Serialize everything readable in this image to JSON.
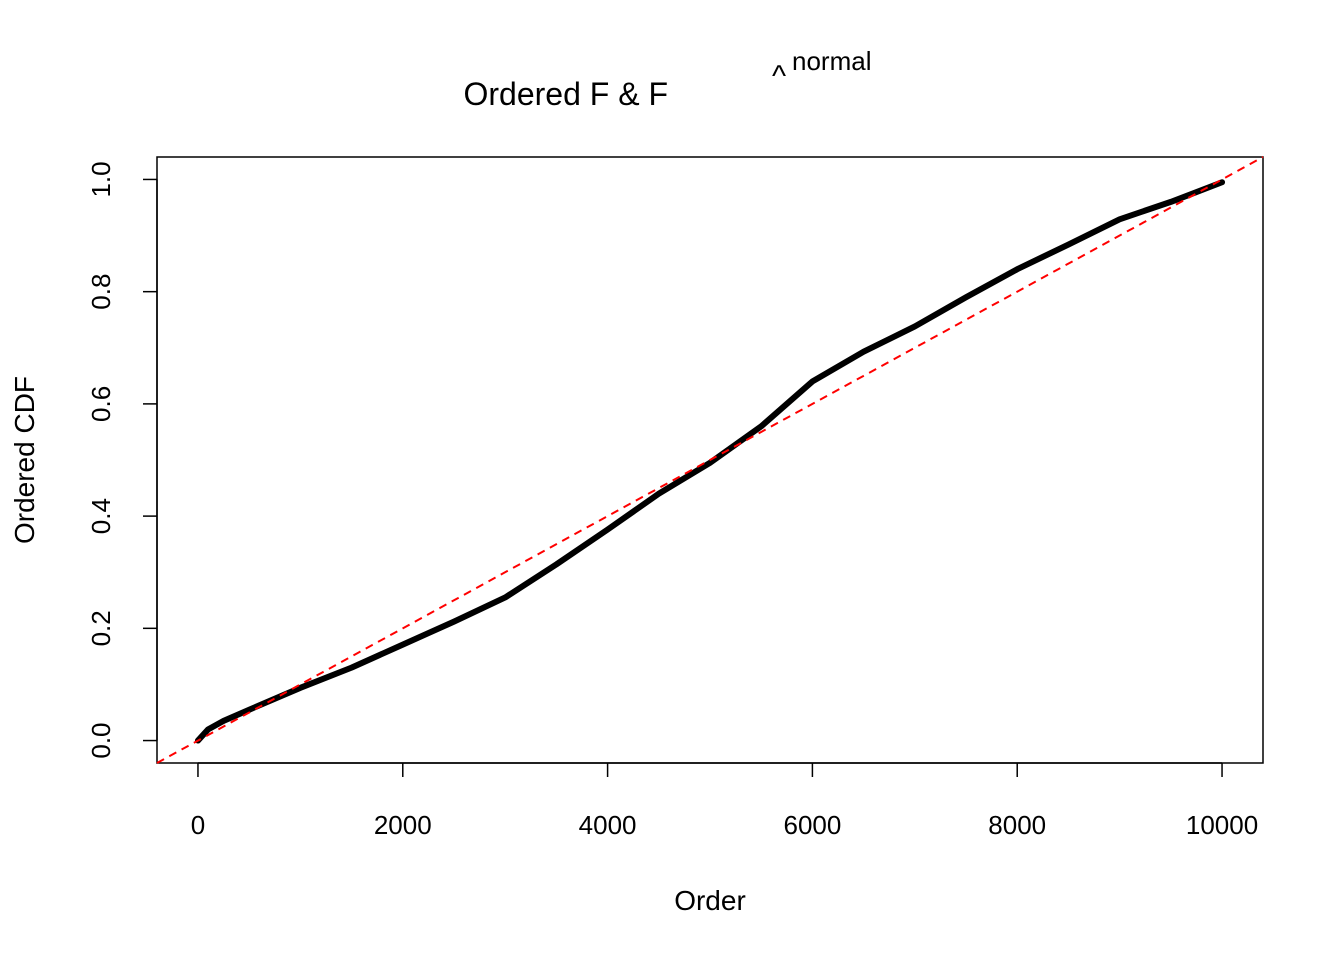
{
  "chart_data": {
    "type": "line",
    "title": "Ordered F & F",
    "title_accent": "^",
    "title_superscript": "normal",
    "xlabel": "Order",
    "ylabel": "Ordered CDF",
    "xlim": [
      -400,
      10400
    ],
    "ylim": [
      -0.04,
      1.04
    ],
    "xticks": [
      0,
      2000,
      4000,
      6000,
      8000,
      10000
    ],
    "yticks": [
      {
        "value": 0,
        "label": "0.0"
      },
      {
        "value": 0.2,
        "label": "0.2"
      },
      {
        "value": 0.4,
        "label": "0.4"
      },
      {
        "value": 0.6,
        "label": "0.6"
      },
      {
        "value": 0.8,
        "label": "0.8"
      },
      {
        "value": 1,
        "label": "1.0"
      }
    ],
    "grid": false,
    "series": [
      {
        "color": "#000000",
        "dashed": false,
        "x": [
          0,
          100,
          250,
          500,
          1000,
          1500,
          2000,
          2500,
          3000,
          3500,
          4000,
          4500,
          5000,
          5500,
          6000,
          6500,
          7000,
          7500,
          8000,
          8500,
          9000,
          9500,
          10000
        ],
        "values": [
          0.0,
          0.02,
          0.035,
          0.055,
          0.094,
          0.13,
          0.171,
          0.212,
          0.255,
          0.314,
          0.376,
          0.44,
          0.495,
          0.56,
          0.64,
          0.693,
          0.738,
          0.79,
          0.84,
          0.884,
          0.929,
          0.96,
          0.995
        ]
      },
      {
        "color": "#ff0000",
        "dashed": true,
        "x": [
          -400,
          10400
        ],
        "values": [
          -0.04,
          1.04
        ]
      }
    ]
  }
}
